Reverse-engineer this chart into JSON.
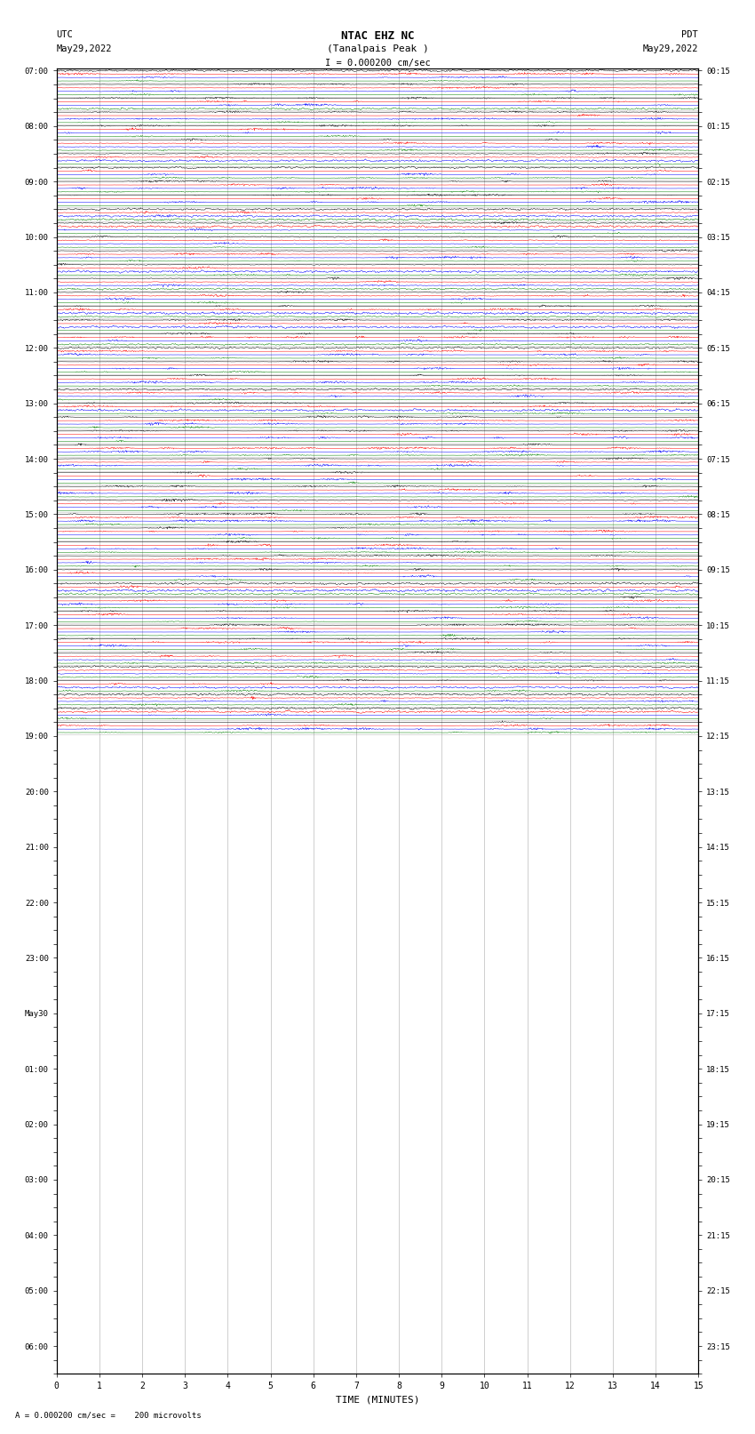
{
  "title_line1": "NTAC EHZ NC",
  "title_line2": "(Tanalpais Peak )",
  "title_scale": "I = 0.000200 cm/sec",
  "left_label": "UTC",
  "left_date": "May29,2022",
  "right_label": "PDT",
  "right_date": "May29,2022",
  "xlabel": "TIME (MINUTES)",
  "bottom_note": "= 0.000200 cm/sec =    200 microvolts",
  "bg_color": "#ffffff",
  "trace_colors": [
    "black",
    "red",
    "blue",
    "green"
  ],
  "grid_color": "#888888",
  "left_times_utc": [
    "07:00",
    "",
    "",
    "",
    "08:00",
    "",
    "",
    "",
    "09:00",
    "",
    "",
    "",
    "10:00",
    "",
    "",
    "",
    "11:00",
    "",
    "",
    "",
    "12:00",
    "",
    "",
    "",
    "13:00",
    "",
    "",
    "",
    "14:00",
    "",
    "",
    "",
    "15:00",
    "",
    "",
    "",
    "16:00",
    "",
    "",
    "",
    "17:00",
    "",
    "",
    "",
    "18:00",
    "",
    "",
    "",
    "19:00",
    "",
    "",
    "",
    "20:00",
    "",
    "",
    "",
    "21:00",
    "",
    "",
    "",
    "22:00",
    "",
    "",
    "",
    "23:00",
    "",
    "",
    "",
    "May30",
    "",
    "",
    "",
    "01:00",
    "",
    "",
    "",
    "02:00",
    "",
    "",
    "",
    "03:00",
    "",
    "",
    "",
    "04:00",
    "",
    "",
    "",
    "05:00",
    "",
    "",
    "",
    "06:00",
    "",
    ""
  ],
  "right_times_pdt": [
    "00:15",
    "",
    "",
    "",
    "01:15",
    "",
    "",
    "",
    "02:15",
    "",
    "",
    "",
    "03:15",
    "",
    "",
    "",
    "04:15",
    "",
    "",
    "",
    "05:15",
    "",
    "",
    "",
    "06:15",
    "",
    "",
    "",
    "07:15",
    "",
    "",
    "",
    "08:15",
    "",
    "",
    "",
    "09:15",
    "",
    "",
    "",
    "10:15",
    "",
    "",
    "",
    "11:15",
    "",
    "",
    "",
    "12:15",
    "",
    "",
    "",
    "13:15",
    "",
    "",
    "",
    "14:15",
    "",
    "",
    "",
    "15:15",
    "",
    "",
    "",
    "16:15",
    "",
    "",
    "",
    "17:15",
    "",
    "",
    "",
    "18:15",
    "",
    "",
    "",
    "19:15",
    "",
    "",
    "",
    "20:15",
    "",
    "",
    "",
    "21:15",
    "",
    "",
    "",
    "22:15",
    "",
    "",
    "",
    "23:15",
    "",
    ""
  ],
  "xmin": 0,
  "xmax": 15,
  "xticks": [
    0,
    1,
    2,
    3,
    4,
    5,
    6,
    7,
    8,
    9,
    10,
    11,
    12,
    13,
    14,
    15
  ],
  "n_rows": 48,
  "traces_per_row": 4,
  "figwidth": 8.5,
  "figheight": 16.13,
  "dpi": 100
}
